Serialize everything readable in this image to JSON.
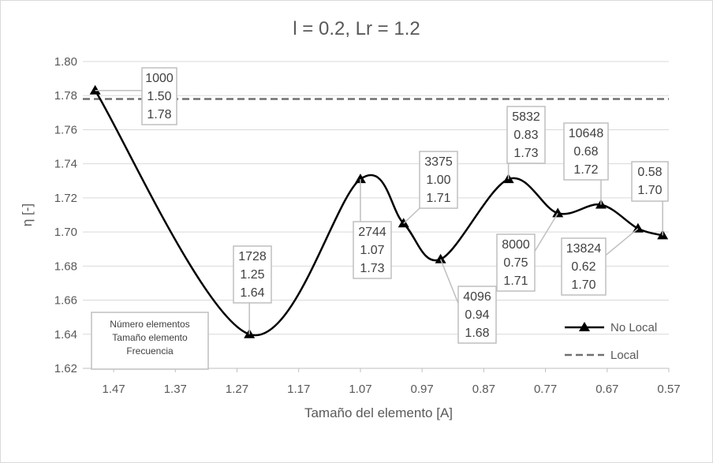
{
  "chart_data": {
    "type": "line",
    "title": "l = 0.2, Lr = 1.2",
    "xlabel": "Tamaño del elemento [A]",
    "ylabel": "η [-]",
    "x_reversed": true,
    "xlim": [
      1.52,
      0.57
    ],
    "ylim": [
      1.62,
      1.8
    ],
    "x_ticks": [
      "1.47",
      "1.37",
      "1.27",
      "1.17",
      "1.07",
      "0.97",
      "0.87",
      "0.77",
      "0.67",
      "0.57"
    ],
    "y_ticks": [
      "1.80",
      "1.78",
      "1.76",
      "1.74",
      "1.72",
      "1.70",
      "1.68",
      "1.66",
      "1.64",
      "1.62"
    ],
    "grid": "horizontal",
    "legend": "bottom-right",
    "series": [
      {
        "name": "No Local",
        "style": "solid-smooth-triangle",
        "color": "#000000",
        "points": [
          {
            "x": 1.5,
            "y": 1.783
          },
          {
            "x": 1.25,
            "y": 1.64
          },
          {
            "x": 1.07,
            "y": 1.731
          },
          {
            "x": 1.0,
            "y": 1.705
          },
          {
            "x": 0.94,
            "y": 1.684
          },
          {
            "x": 0.83,
            "y": 1.731
          },
          {
            "x": 0.75,
            "y": 1.711
          },
          {
            "x": 0.68,
            "y": 1.716
          },
          {
            "x": 0.62,
            "y": 1.702
          },
          {
            "x": 0.58,
            "y": 1.698
          }
        ]
      },
      {
        "name": "Local",
        "style": "dashed",
        "color": "#707070",
        "y": 1.778
      }
    ],
    "annotations": [
      {
        "point": 0,
        "lines": [
          "1000",
          "1.50",
          "1.78"
        ]
      },
      {
        "point": 1,
        "lines": [
          "1728",
          "1.25",
          "1.64"
        ]
      },
      {
        "point": 2,
        "lines": [
          "2744",
          "1.07",
          "1.73"
        ]
      },
      {
        "point": 3,
        "lines": [
          "3375",
          "1.00",
          "1.71"
        ]
      },
      {
        "point": 4,
        "lines": [
          "4096",
          "0.94",
          "1.68"
        ]
      },
      {
        "point": 5,
        "lines": [
          "5832",
          "0.83",
          "1.73"
        ]
      },
      {
        "point": 6,
        "lines": [
          "8000",
          "0.75",
          "1.71"
        ]
      },
      {
        "point": 7,
        "lines": [
          "10648",
          "0.68",
          "1.72"
        ]
      },
      {
        "point": 8,
        "lines": [
          "13824",
          "0.62",
          "1.70"
        ]
      },
      {
        "point": 9,
        "lines": [
          "0.58",
          "1.70"
        ]
      }
    ],
    "note": [
      "Número elementos",
      "Tamaño elemento",
      "Frecuencia"
    ]
  }
}
